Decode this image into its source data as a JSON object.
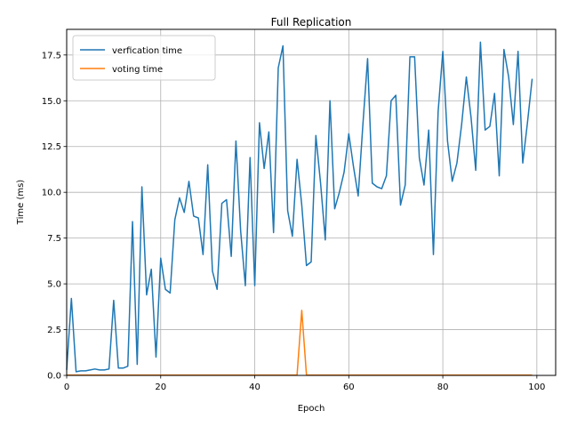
{
  "chart_data": {
    "type": "line",
    "title": "Full Replication",
    "xlabel": "Epoch",
    "ylabel": "Time (ms)",
    "xlim": [
      0,
      104
    ],
    "ylim": [
      0,
      18.9
    ],
    "xticks": [
      0,
      20,
      40,
      60,
      80,
      100
    ],
    "yticks": [
      0.0,
      2.5,
      5.0,
      7.5,
      10.0,
      12.5,
      15.0,
      17.5
    ],
    "xtick_labels": [
      "0",
      "20",
      "40",
      "60",
      "80",
      "100"
    ],
    "ytick_labels": [
      "0.0",
      "2.5",
      "5.0",
      "7.5",
      "10.0",
      "12.5",
      "15.0",
      "17.5"
    ],
    "grid": true,
    "legend_position": "upper-left",
    "x": [
      0,
      1,
      2,
      3,
      4,
      5,
      6,
      7,
      8,
      9,
      10,
      11,
      12,
      13,
      14,
      15,
      16,
      17,
      18,
      19,
      20,
      21,
      22,
      23,
      24,
      25,
      26,
      27,
      28,
      29,
      30,
      31,
      32,
      33,
      34,
      35,
      36,
      37,
      38,
      39,
      40,
      41,
      42,
      43,
      44,
      45,
      46,
      47,
      48,
      49,
      50,
      51,
      52,
      53,
      54,
      55,
      56,
      57,
      58,
      59,
      60,
      61,
      62,
      63,
      64,
      65,
      66,
      67,
      68,
      69,
      70,
      71,
      72,
      73,
      74,
      75,
      76,
      77,
      78,
      79,
      80,
      81,
      82,
      83,
      84,
      85,
      86,
      87,
      88,
      89,
      90,
      91,
      92,
      93,
      94,
      95,
      96,
      97,
      98,
      99
    ],
    "series": [
      {
        "name": "verfication time",
        "color": "#1f77b4",
        "values": [
          0.3,
          4.2,
          0.2,
          0.25,
          0.25,
          0.3,
          0.35,
          0.3,
          0.3,
          0.35,
          4.1,
          0.4,
          0.4,
          0.5,
          8.4,
          0.6,
          10.3,
          4.4,
          5.8,
          1.0,
          6.4,
          4.7,
          4.5,
          8.5,
          9.7,
          8.9,
          10.6,
          8.7,
          8.6,
          6.6,
          11.5,
          5.7,
          4.7,
          9.4,
          9.6,
          6.5,
          12.8,
          7.9,
          4.9,
          11.9,
          4.9,
          13.8,
          11.3,
          13.3,
          7.8,
          16.8,
          18.0,
          9.0,
          7.6,
          11.8,
          9.3,
          6.0,
          6.2,
          13.1,
          10.5,
          7.4,
          15.0,
          9.1,
          10.0,
          11.1,
          13.2,
          11.4,
          9.8,
          13.7,
          17.3,
          10.5,
          10.3,
          10.2,
          10.9,
          15.0,
          15.3,
          9.3,
          10.4,
          17.4,
          17.4,
          11.9,
          10.4,
          13.4,
          6.6,
          14.4,
          17.7,
          12.8,
          10.6,
          11.6,
          13.7,
          16.3,
          14.1,
          11.2,
          18.2,
          13.4,
          13.6,
          15.4,
          10.9,
          17.8,
          16.3,
          13.7,
          17.7,
          11.6,
          13.8,
          16.2
        ]
      },
      {
        "name": "voting time",
        "color": "#ff7f0e",
        "values": [
          0.02,
          0.02,
          0.02,
          0.02,
          0.02,
          0.02,
          0.02,
          0.02,
          0.02,
          0.02,
          0.02,
          0.02,
          0.02,
          0.02,
          0.02,
          0.02,
          0.02,
          0.02,
          0.02,
          0.02,
          0.02,
          0.02,
          0.02,
          0.02,
          0.02,
          0.02,
          0.02,
          0.02,
          0.02,
          0.02,
          0.02,
          0.02,
          0.02,
          0.02,
          0.02,
          0.02,
          0.02,
          0.02,
          0.02,
          0.02,
          0.02,
          0.02,
          0.02,
          0.02,
          0.02,
          0.02,
          0.02,
          0.02,
          0.02,
          0.02,
          3.55,
          0.02,
          0.02,
          0.02,
          0.02,
          0.02,
          0.02,
          0.02,
          0.02,
          0.02,
          0.02,
          0.02,
          0.02,
          0.02,
          0.02,
          0.02,
          0.02,
          0.02,
          0.02,
          0.02,
          0.02,
          0.02,
          0.02,
          0.02,
          0.02,
          0.02,
          0.02,
          0.02,
          0.02,
          0.02,
          0.02,
          0.02,
          0.02,
          0.02,
          0.02,
          0.02,
          0.02,
          0.02,
          0.02,
          0.02,
          0.02,
          0.02,
          0.02,
          0.02,
          0.02,
          0.02,
          0.02,
          0.02,
          0.02,
          0.02
        ]
      }
    ]
  }
}
